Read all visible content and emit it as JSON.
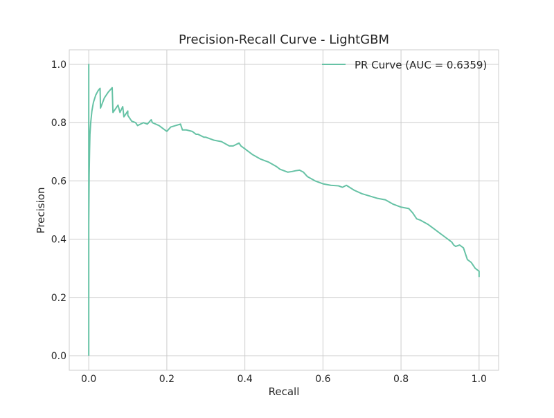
{
  "chart_data": {
    "type": "line",
    "title": "Precision-Recall Curve - LightGBM",
    "xlabel": "Recall",
    "ylabel": "Precision",
    "xlim": [
      -0.05,
      1.05
    ],
    "ylim": [
      -0.05,
      1.05
    ],
    "x_ticks": [
      0.0,
      0.2,
      0.4,
      0.6,
      0.8,
      1.0
    ],
    "x_tick_labels": [
      "0.0",
      "0.2",
      "0.4",
      "0.6",
      "0.8",
      "1.0"
    ],
    "y_ticks": [
      0.0,
      0.2,
      0.4,
      0.6,
      0.8,
      1.0
    ],
    "y_tick_labels": [
      "0.0",
      "0.2",
      "0.4",
      "0.6",
      "0.8",
      "1.0"
    ],
    "grid": true,
    "legend_position": "top-right",
    "series": [
      {
        "name": "PR Curve (AUC = 0.6359)",
        "color": "#66c2a5",
        "x": [
          0.0,
          0.0,
          0.0,
          0.001,
          0.002,
          0.003,
          0.005,
          0.008,
          0.012,
          0.018,
          0.024,
          0.029,
          0.03,
          0.04,
          0.05,
          0.06,
          0.062,
          0.075,
          0.08,
          0.087,
          0.09,
          0.1,
          0.1,
          0.11,
          0.12,
          0.125,
          0.14,
          0.15,
          0.16,
          0.163,
          0.18,
          0.19,
          0.2,
          0.21,
          0.235,
          0.24,
          0.25,
          0.265,
          0.275,
          0.28,
          0.295,
          0.3,
          0.32,
          0.34,
          0.36,
          0.37,
          0.385,
          0.39,
          0.4,
          0.41,
          0.42,
          0.44,
          0.46,
          0.48,
          0.49,
          0.5,
          0.51,
          0.52,
          0.53,
          0.54,
          0.55,
          0.56,
          0.58,
          0.6,
          0.62,
          0.64,
          0.65,
          0.66,
          0.68,
          0.7,
          0.72,
          0.74,
          0.76,
          0.78,
          0.8,
          0.82,
          0.83,
          0.84,
          0.85,
          0.87,
          0.89,
          0.91,
          0.93,
          0.935,
          0.94,
          0.95,
          0.96,
          0.965,
          0.97,
          0.98,
          0.99,
          1.0,
          1.0
        ],
        "y": [
          0.0,
          1.0,
          0.45,
          0.62,
          0.7,
          0.76,
          0.8,
          0.84,
          0.87,
          0.895,
          0.91,
          0.918,
          0.85,
          0.885,
          0.905,
          0.92,
          0.835,
          0.86,
          0.835,
          0.855,
          0.82,
          0.84,
          0.825,
          0.805,
          0.8,
          0.79,
          0.8,
          0.795,
          0.81,
          0.8,
          0.79,
          0.78,
          0.77,
          0.785,
          0.795,
          0.775,
          0.775,
          0.77,
          0.76,
          0.76,
          0.75,
          0.75,
          0.74,
          0.735,
          0.72,
          0.72,
          0.73,
          0.72,
          0.71,
          0.7,
          0.69,
          0.675,
          0.665,
          0.65,
          0.64,
          0.635,
          0.63,
          0.632,
          0.635,
          0.637,
          0.63,
          0.615,
          0.6,
          0.59,
          0.585,
          0.583,
          0.578,
          0.585,
          0.568,
          0.556,
          0.548,
          0.54,
          0.535,
          0.52,
          0.51,
          0.505,
          0.49,
          0.47,
          0.465,
          0.45,
          0.43,
          0.41,
          0.39,
          0.38,
          0.375,
          0.38,
          0.37,
          0.35,
          0.33,
          0.32,
          0.3,
          0.29,
          0.27
        ]
      }
    ]
  }
}
